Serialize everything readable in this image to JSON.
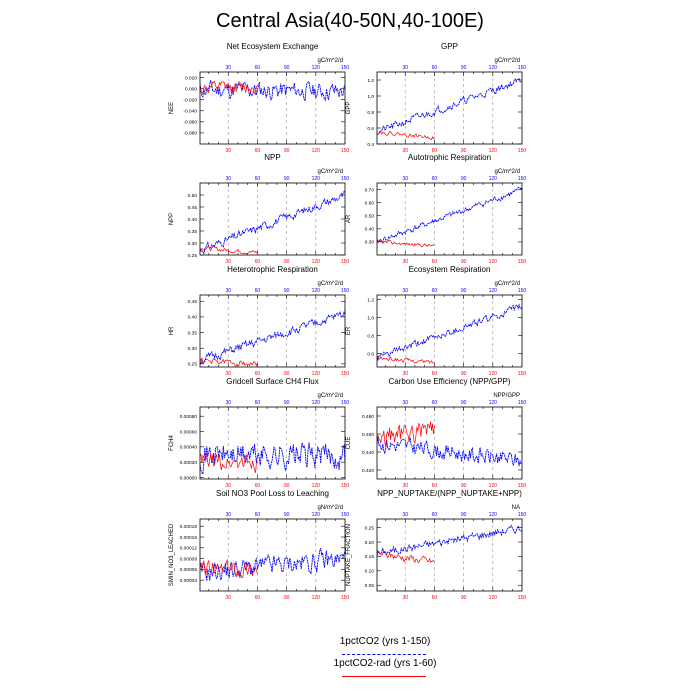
{
  "page": {
    "title": "Central Asia(40-50N,40-100E)"
  },
  "colors": {
    "series_long": "#0000ff",
    "series_short": "#ff0000",
    "grid": "#999999"
  },
  "legend": {
    "long_label": "1pctCO2 (yrs 1-150)",
    "short_label": "1pctCO2-rad (yrs 1-60)"
  },
  "chart_data": [
    {
      "type": "line",
      "title": "Net Ecosystem Exchange",
      "units": "gC/m^2/d",
      "ylabel": "NEE",
      "xlim": [
        1,
        150
      ],
      "ylim": [
        -0.1,
        0.03
      ],
      "yticks": [
        0.02,
        0.0,
        -0.02,
        -0.04,
        -0.06,
        -0.08
      ],
      "ytick_labels": [
        "0.020",
        "0.000",
        "-0.020",
        "-0.040",
        "-0.060",
        "-0.080"
      ],
      "xticks": [
        30,
        60,
        90,
        120,
        150
      ],
      "series": [
        {
          "start": -0.002,
          "end": -0.005,
          "noise": 0.014,
          "seed": 11,
          "n": 150
        },
        {
          "start": 0.0,
          "end": 0.003,
          "noise": 0.01,
          "seed": 12,
          "n": 60
        }
      ]
    },
    {
      "type": "line",
      "title": "GPP",
      "units": "gC/m^2/d",
      "ylabel": "GPP",
      "xlim": [
        1,
        150
      ],
      "ylim": [
        0.4,
        1.3
      ],
      "yticks": [
        0.4,
        0.6,
        0.8,
        1.0,
        1.2
      ],
      "ytick_labels": [
        "0.4",
        "0.6",
        "0.8",
        "1.0",
        "1.2"
      ],
      "xticks": [
        30,
        60,
        90,
        120,
        150
      ],
      "series": [
        {
          "start": 0.55,
          "end": 1.2,
          "noise": 0.04,
          "seed": 21,
          "n": 150
        },
        {
          "start": 0.55,
          "end": 0.48,
          "noise": 0.02,
          "seed": 22,
          "n": 60
        }
      ]
    },
    {
      "type": "line",
      "title": "NPP",
      "units": "gC/m^2/d",
      "ylabel": "NPP",
      "xlim": [
        1,
        150
      ],
      "ylim": [
        0.25,
        0.55
      ],
      "yticks": [
        0.25,
        0.3,
        0.35,
        0.4,
        0.45,
        0.5
      ],
      "ytick_labels": [
        "0.25",
        "0.30",
        "0.35",
        "0.40",
        "0.45",
        "0.50"
      ],
      "xticks": [
        30,
        60,
        90,
        120,
        150
      ],
      "series": [
        {
          "start": 0.27,
          "end": 0.5,
          "noise": 0.015,
          "seed": 31,
          "n": 150
        },
        {
          "start": 0.28,
          "end": 0.26,
          "noise": 0.008,
          "seed": 32,
          "n": 60
        }
      ]
    },
    {
      "type": "line",
      "title": "Autotrophic Respiration",
      "units": "gC/m^2/d",
      "ylabel": "AR",
      "xlim": [
        1,
        150
      ],
      "ylim": [
        0.2,
        0.75
      ],
      "yticks": [
        0.3,
        0.4,
        0.5,
        0.6,
        0.7
      ],
      "ytick_labels": [
        "0.30",
        "0.40",
        "0.50",
        "0.60",
        "0.70"
      ],
      "xticks": [
        30,
        60,
        90,
        120,
        150
      ],
      "series": [
        {
          "start": 0.3,
          "end": 0.7,
          "noise": 0.02,
          "seed": 41,
          "n": 150
        },
        {
          "start": 0.3,
          "end": 0.27,
          "noise": 0.012,
          "seed": 42,
          "n": 60
        }
      ]
    },
    {
      "type": "line",
      "title": "Heterotrophic Respiration",
      "units": "gC/m^2/d",
      "ylabel": "HR",
      "xlim": [
        1,
        150
      ],
      "ylim": [
        0.24,
        0.47
      ],
      "yticks": [
        0.25,
        0.3,
        0.35,
        0.4,
        0.45
      ],
      "ytick_labels": [
        "0.25",
        "0.30",
        "0.35",
        "0.40",
        "0.45"
      ],
      "xticks": [
        30,
        60,
        90,
        120,
        150
      ],
      "series": [
        {
          "start": 0.26,
          "end": 0.41,
          "noise": 0.012,
          "seed": 51,
          "n": 150
        },
        {
          "start": 0.26,
          "end": 0.25,
          "noise": 0.008,
          "seed": 52,
          "n": 60
        }
      ]
    },
    {
      "type": "line",
      "title": "Ecosystem Respiration",
      "units": "gC/m^2/d",
      "ylabel": "ER",
      "xlim": [
        1,
        150
      ],
      "ylim": [
        0.45,
        1.25
      ],
      "yticks": [
        0.6,
        0.8,
        1.0,
        1.2
      ],
      "ytick_labels": [
        "0.6",
        "0.8",
        "1.0",
        "1.2"
      ],
      "xticks": [
        30,
        60,
        90,
        120,
        150
      ],
      "series": [
        {
          "start": 0.55,
          "end": 1.12,
          "noise": 0.035,
          "seed": 61,
          "n": 150
        },
        {
          "start": 0.55,
          "end": 0.5,
          "noise": 0.02,
          "seed": 62,
          "n": 60
        }
      ]
    },
    {
      "type": "line",
      "title": "Gridcell Surface CH4 Flux",
      "units": "gC/m^2/d",
      "ylabel": "FCH4",
      "xlim": [
        1,
        150
      ],
      "ylim": [
        -2e-05,
        0.00092
      ],
      "yticks": [
        0.0,
        0.0002,
        0.0004,
        0.0006,
        0.0008
      ],
      "ytick_labels": [
        "0.00000",
        "0.00020",
        "0.00040",
        "0.00060",
        "0.00080"
      ],
      "xticks": [
        30,
        60,
        90,
        120,
        150
      ],
      "series": [
        {
          "start": 0.0003,
          "end": 0.00028,
          "noise": 0.00015,
          "seed": 71,
          "n": 150
        },
        {
          "start": 0.0002,
          "end": 0.0002,
          "noise": 0.0001,
          "seed": 72,
          "n": 60
        }
      ]
    },
    {
      "type": "line",
      "title": "Carbon Use Efficiency (NPP/GPP)",
      "units": "NPP/GPP",
      "ylabel": "CUE",
      "xlim": [
        1,
        150
      ],
      "ylim": [
        0.41,
        0.49
      ],
      "yticks": [
        0.42,
        0.44,
        0.46,
        0.48
      ],
      "ytick_labels": [
        "0.420",
        "0.440",
        "0.460",
        "0.480"
      ],
      "xticks": [
        30,
        60,
        90,
        120,
        150
      ],
      "series": [
        {
          "start": 0.45,
          "end": 0.43,
          "noise": 0.008,
          "seed": 81,
          "n": 150
        },
        {
          "start": 0.455,
          "end": 0.465,
          "noise": 0.01,
          "seed": 82,
          "n": 60
        }
      ]
    },
    {
      "type": "line",
      "title": "Soil NO3 Pool Loss to Leaching",
      "units": "gN/m^2/d",
      "ylabel": "SMIN_NO3_LEACHED",
      "xlim": [
        1,
        150
      ],
      "ylim": [
        0.0,
        0.0002
      ],
      "yticks": [
        3e-05,
        6e-05,
        9e-05,
        0.00012,
        0.00015,
        0.00018
      ],
      "ytick_labels": [
        "0.00003",
        "0.00006",
        "0.00009",
        "0.00012",
        "0.00015",
        "0.00018"
      ],
      "xticks": [
        30,
        60,
        90,
        120,
        150
      ],
      "series": [
        {
          "start": 5e-05,
          "end": 9e-05,
          "noise": 2.5e-05,
          "seed": 91,
          "n": 150
        },
        {
          "start": 6e-05,
          "end": 6e-05,
          "noise": 2e-05,
          "seed": 92,
          "n": 60
        }
      ]
    },
    {
      "type": "line",
      "title": "NPP_NUPTAKE/(NPP_NUPTAKE+NPP)",
      "units": "NA",
      "ylabel": "NUPTAKE_FRACTION",
      "xlim": [
        1,
        150
      ],
      "ylim": [
        0.03,
        0.28
      ],
      "yticks": [
        0.05,
        0.1,
        0.15,
        0.2,
        0.25
      ],
      "ytick_labels": [
        "0.05",
        "0.10",
        "0.15",
        "0.20",
        "0.25"
      ],
      "xticks": [
        30,
        60,
        90,
        120,
        150
      ],
      "series": [
        {
          "start": 0.16,
          "end": 0.25,
          "noise": 0.012,
          "seed": 101,
          "n": 150
        },
        {
          "start": 0.16,
          "end": 0.13,
          "noise": 0.012,
          "seed": 102,
          "n": 60
        }
      ]
    }
  ]
}
